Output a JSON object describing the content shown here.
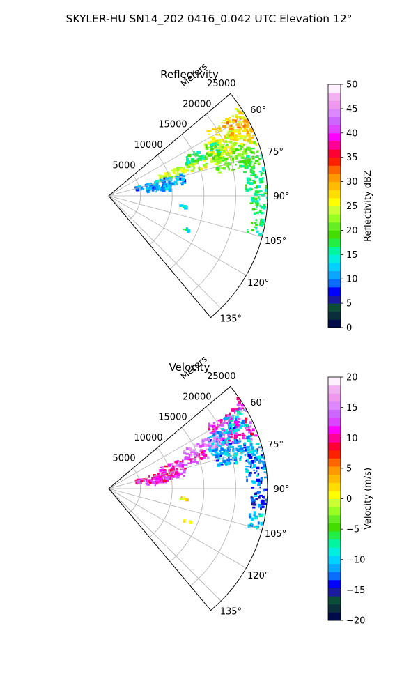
{
  "suptitle": "SKYLER-HU  SN14_202  0416_0.042 UTC Elevation 12°",
  "chart_data": [
    {
      "type": "heatmap",
      "projection": "polar-sector",
      "title": "Reflectivity",
      "radial_label": "Meters",
      "radial_ticks": [
        "5000",
        "10000",
        "15000",
        "20000",
        "25000"
      ],
      "r_ticks_m": [
        5000,
        10000,
        15000,
        20000,
        25000
      ],
      "rlim": [
        0,
        25000
      ],
      "theta_ticks": [
        "60°",
        "75°",
        "90°",
        "105°",
        "120°",
        "135°"
      ],
      "theta_tick_values_deg": [
        60,
        75,
        90,
        105,
        120,
        135
      ],
      "theta_range_deg": [
        50,
        140
      ],
      "grid": true,
      "colorbar": {
        "label": "Reflectivity dBZ",
        "range": [
          0,
          50
        ],
        "ticks": [
          "0",
          "5",
          "10",
          "15",
          "20",
          "25",
          "30",
          "35",
          "40",
          "45",
          "50"
        ],
        "colors": [
          "#000c4a",
          "#0a2f3a",
          "#0c4d3a",
          "#1a1aa0",
          "#0000ff",
          "#0a6dff",
          "#0aa6ff",
          "#00d2ff",
          "#00eedd",
          "#00f5a0",
          "#22ee44",
          "#44dd00",
          "#66ee22",
          "#99ff22",
          "#ccff33",
          "#ffff00",
          "#ffdd00",
          "#ffbb00",
          "#ff9900",
          "#ff6600",
          "#ff2200",
          "#ff0033",
          "#ff0099",
          "#ff00ff",
          "#dd44ff",
          "#cc66ff",
          "#dd88ff",
          "#ee99ee",
          "#f2b2f2",
          "#fff0ff"
        ]
      },
      "echo_regions": [
        {
          "theta": 64,
          "r": 21500,
          "dtheta": 7,
          "dr": 3200,
          "level": 27
        },
        {
          "theta": 62,
          "r": 23000,
          "dtheta": 4,
          "dr": 1800,
          "level": 30
        },
        {
          "theta": 68,
          "r": 19500,
          "dtheta": 6,
          "dr": 2500,
          "level": 24
        },
        {
          "theta": 58,
          "r": 25500,
          "dtheta": 3,
          "dr": 1200,
          "level": 26
        },
        {
          "theta": 74,
          "r": 21000,
          "dtheta": 5,
          "dr": 3500,
          "level": 20
        },
        {
          "theta": 81,
          "r": 24000,
          "dtheta": 7,
          "dr": 2500,
          "level": 17
        },
        {
          "theta": 93,
          "r": 24500,
          "dtheta": 5,
          "dr": 2000,
          "level": 17
        },
        {
          "theta": 71,
          "r": 12500,
          "dtheta": 3,
          "dr": 4000,
          "level": 24
        },
        {
          "theta": 66,
          "r": 16000,
          "dtheta": 3,
          "dr": 3000,
          "level": 17
        },
        {
          "theta": 77,
          "r": 8500,
          "dtheta": 4,
          "dr": 4000,
          "level": 11
        },
        {
          "theta": 82,
          "r": 8000,
          "dtheta": 3,
          "dr": 2000,
          "level": 11
        },
        {
          "theta": 102,
          "r": 24000,
          "dtheta": 3,
          "dr": 1500,
          "level": 17
        },
        {
          "theta": 98,
          "r": 12000,
          "dtheta": 1,
          "dr": 500,
          "level": 15
        },
        {
          "theta": 113,
          "r": 13500,
          "dtheta": 1,
          "dr": 600,
          "level": 15
        }
      ]
    },
    {
      "type": "heatmap",
      "projection": "polar-sector",
      "title": "Velocity",
      "radial_label": "Meters",
      "radial_ticks": [
        "5000",
        "10000",
        "15000",
        "20000",
        "25000"
      ],
      "r_ticks_m": [
        5000,
        10000,
        15000,
        20000,
        25000
      ],
      "rlim": [
        0,
        25000
      ],
      "theta_ticks": [
        "60°",
        "75°",
        "90°",
        "105°",
        "120°",
        "135°"
      ],
      "theta_tick_values_deg": [
        60,
        75,
        90,
        105,
        120,
        135
      ],
      "theta_range_deg": [
        50,
        140
      ],
      "grid": true,
      "colorbar": {
        "label": "Velocity (m/s)",
        "range": [
          -20,
          20
        ],
        "ticks": [
          "−20",
          "−15",
          "−10",
          "−5",
          "0",
          "5",
          "10",
          "15",
          "20"
        ],
        "colors": [
          "#000c4a",
          "#0a2f3a",
          "#0c4d3a",
          "#1a1aa0",
          "#0000ff",
          "#0a6dff",
          "#0aa6ff",
          "#00d2ff",
          "#00eedd",
          "#00f5a0",
          "#22ee44",
          "#44dd00",
          "#66ee22",
          "#99ff22",
          "#ccff33",
          "#ffff00",
          "#ffdd00",
          "#ffbb00",
          "#ff9900",
          "#ff6600",
          "#ff2200",
          "#ff0033",
          "#ff0099",
          "#ff00ff",
          "#dd44ff",
          "#cc66ff",
          "#dd88ff",
          "#ee99ee",
          "#f2b2f2",
          "#fff0ff"
        ]
      },
      "echo_regions": [
        {
          "theta": 64,
          "r": 21500,
          "dtheta": 7,
          "dr": 3200,
          "level": 12
        },
        {
          "theta": 62,
          "r": 23000,
          "dtheta": 4,
          "dr": 1800,
          "level": -10
        },
        {
          "theta": 68,
          "r": 19500,
          "dtheta": 6,
          "dr": 2500,
          "level": -11
        },
        {
          "theta": 58,
          "r": 25500,
          "dtheta": 3,
          "dr": 1200,
          "level": 11
        },
        {
          "theta": 74,
          "r": 21000,
          "dtheta": 5,
          "dr": 3500,
          "level": -11
        },
        {
          "theta": 81,
          "r": 24000,
          "dtheta": 7,
          "dr": 2500,
          "level": -12
        },
        {
          "theta": 93,
          "r": 24500,
          "dtheta": 5,
          "dr": 2000,
          "level": -13
        },
        {
          "theta": 71,
          "r": 12500,
          "dtheta": 3,
          "dr": 4000,
          "level": 12
        },
        {
          "theta": 66,
          "r": 16000,
          "dtheta": 3,
          "dr": 3000,
          "level": 15
        },
        {
          "theta": 77,
          "r": 8500,
          "dtheta": 4,
          "dr": 4000,
          "level": 11
        },
        {
          "theta": 82,
          "r": 8000,
          "dtheta": 3,
          "dr": 2000,
          "level": 11
        },
        {
          "theta": 102,
          "r": 24000,
          "dtheta": 3,
          "dr": 1500,
          "level": -10
        },
        {
          "theta": 98,
          "r": 12000,
          "dtheta": 1,
          "dr": 500,
          "level": 2
        },
        {
          "theta": 113,
          "r": 13500,
          "dtheta": 1,
          "dr": 600,
          "level": 1
        }
      ]
    }
  ]
}
